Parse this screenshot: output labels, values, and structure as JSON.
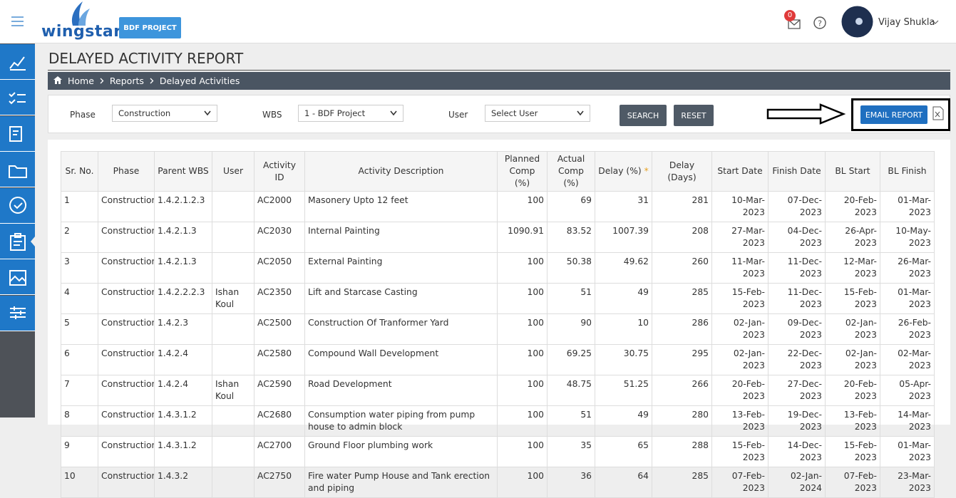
{
  "header": {
    "logo": "wingstar",
    "project_button": "BDF PROJECT",
    "notification_count": 0,
    "user_name": "Vijay Shukla"
  },
  "page_title": "DELAYED ACTIVITY REPORT",
  "breadcrumb": [
    "Home",
    "Reports",
    "Delayed Activities"
  ],
  "filters": {
    "phase": {
      "label": "Phase",
      "value": "Construction"
    },
    "wbs": {
      "label": "WBS",
      "value": "1 - BDF Project"
    },
    "user": {
      "label": "User",
      "value": "Select User"
    }
  },
  "buttons": {
    "search": "SEARCH",
    "reset": "RESET",
    "email": "EMAIL REPORT"
  },
  "table": {
    "headers": [
      "Sr. No.",
      "Phase",
      "Parent WBS",
      "User",
      "Activity ID",
      "Activity Description",
      "Planned Comp (%)",
      "Actual Comp (%)",
      "Delay (%)",
      "Delay (Days)",
      "Start Date",
      "Finish Date",
      "BL Start",
      "BL Finish"
    ],
    "delay_marker": "*",
    "rows": [
      [
        1,
        "Construction",
        "1.4.2.1.2.3",
        null,
        "AC2000",
        "Masonery Upto 12 feet",
        100,
        69,
        31,
        281,
        "10-Mar-2023",
        "07-Dec-2023",
        "20-Feb-2023",
        "01-Mar-2023"
      ],
      [
        2,
        "Construction",
        "1.4.2.1.3",
        null,
        "AC2030",
        "Internal Painting",
        1090.91,
        83.52,
        1007.39,
        208,
        "27-Mar-2023",
        "04-Dec-2023",
        "26-Apr-2023",
        "10-May-2023"
      ],
      [
        3,
        "Construction",
        "1.4.2.1.3",
        null,
        "AC2050",
        "External Painting",
        100,
        50.38,
        49.62,
        260,
        "11-Mar-2023",
        "11-Dec-2023",
        "12-Mar-2023",
        "26-Mar-2023"
      ],
      [
        4,
        "Construction",
        "1.4.2.2.2.3",
        "Ishan Koul",
        "AC2350",
        "Lift and Starcase Casting",
        100,
        51,
        49,
        285,
        "15-Feb-2023",
        "11-Dec-2023",
        "15-Feb-2023",
        "01-Mar-2023"
      ],
      [
        5,
        "Construction",
        "1.4.2.3",
        null,
        "AC2500",
        "Construction Of Tranformer Yard",
        100,
        90,
        10,
        286,
        "02-Jan-2023",
        "09-Dec-2023",
        "02-Jan-2023",
        "26-Feb-2023"
      ],
      [
        6,
        "Construction",
        "1.4.2.4",
        null,
        "AC2580",
        "Compound Wall Development",
        100,
        69.25,
        30.75,
        295,
        "02-Jan-2023",
        "22-Dec-2023",
        "02-Jan-2023",
        "02-Mar-2023"
      ],
      [
        7,
        "Construction",
        "1.4.2.4",
        "Ishan Koul",
        "AC2590",
        "Road Development",
        100,
        48.75,
        51.25,
        266,
        "20-Feb-2023",
        "27-Dec-2023",
        "20-Feb-2023",
        "05-Apr-2023"
      ],
      [
        8,
        "Construction",
        "1.4.3.1.2",
        null,
        "AC2680",
        "Consumption water piping from pump house to admin block",
        100,
        51,
        49,
        280,
        "13-Feb-2023",
        "19-Dec-2023",
        "13-Feb-2023",
        "14-Mar-2023"
      ],
      [
        9,
        "Construction",
        "1.4.3.1.2",
        null,
        "AC2700",
        "Ground Floor plumbing work",
        100,
        35,
        65,
        288,
        "15-Feb-2023",
        "14-Dec-2023",
        "15-Feb-2023",
        "01-Mar-2023"
      ],
      [
        10,
        "Construction",
        "1.4.3.2",
        null,
        "AC2750",
        "Fire water Pump House and Tank erection and piping",
        100,
        36,
        64,
        285,
        "07-Feb-2023",
        "02-Jan-2024",
        "07-Feb-2023",
        "23-Mar-2023"
      ]
    ]
  }
}
